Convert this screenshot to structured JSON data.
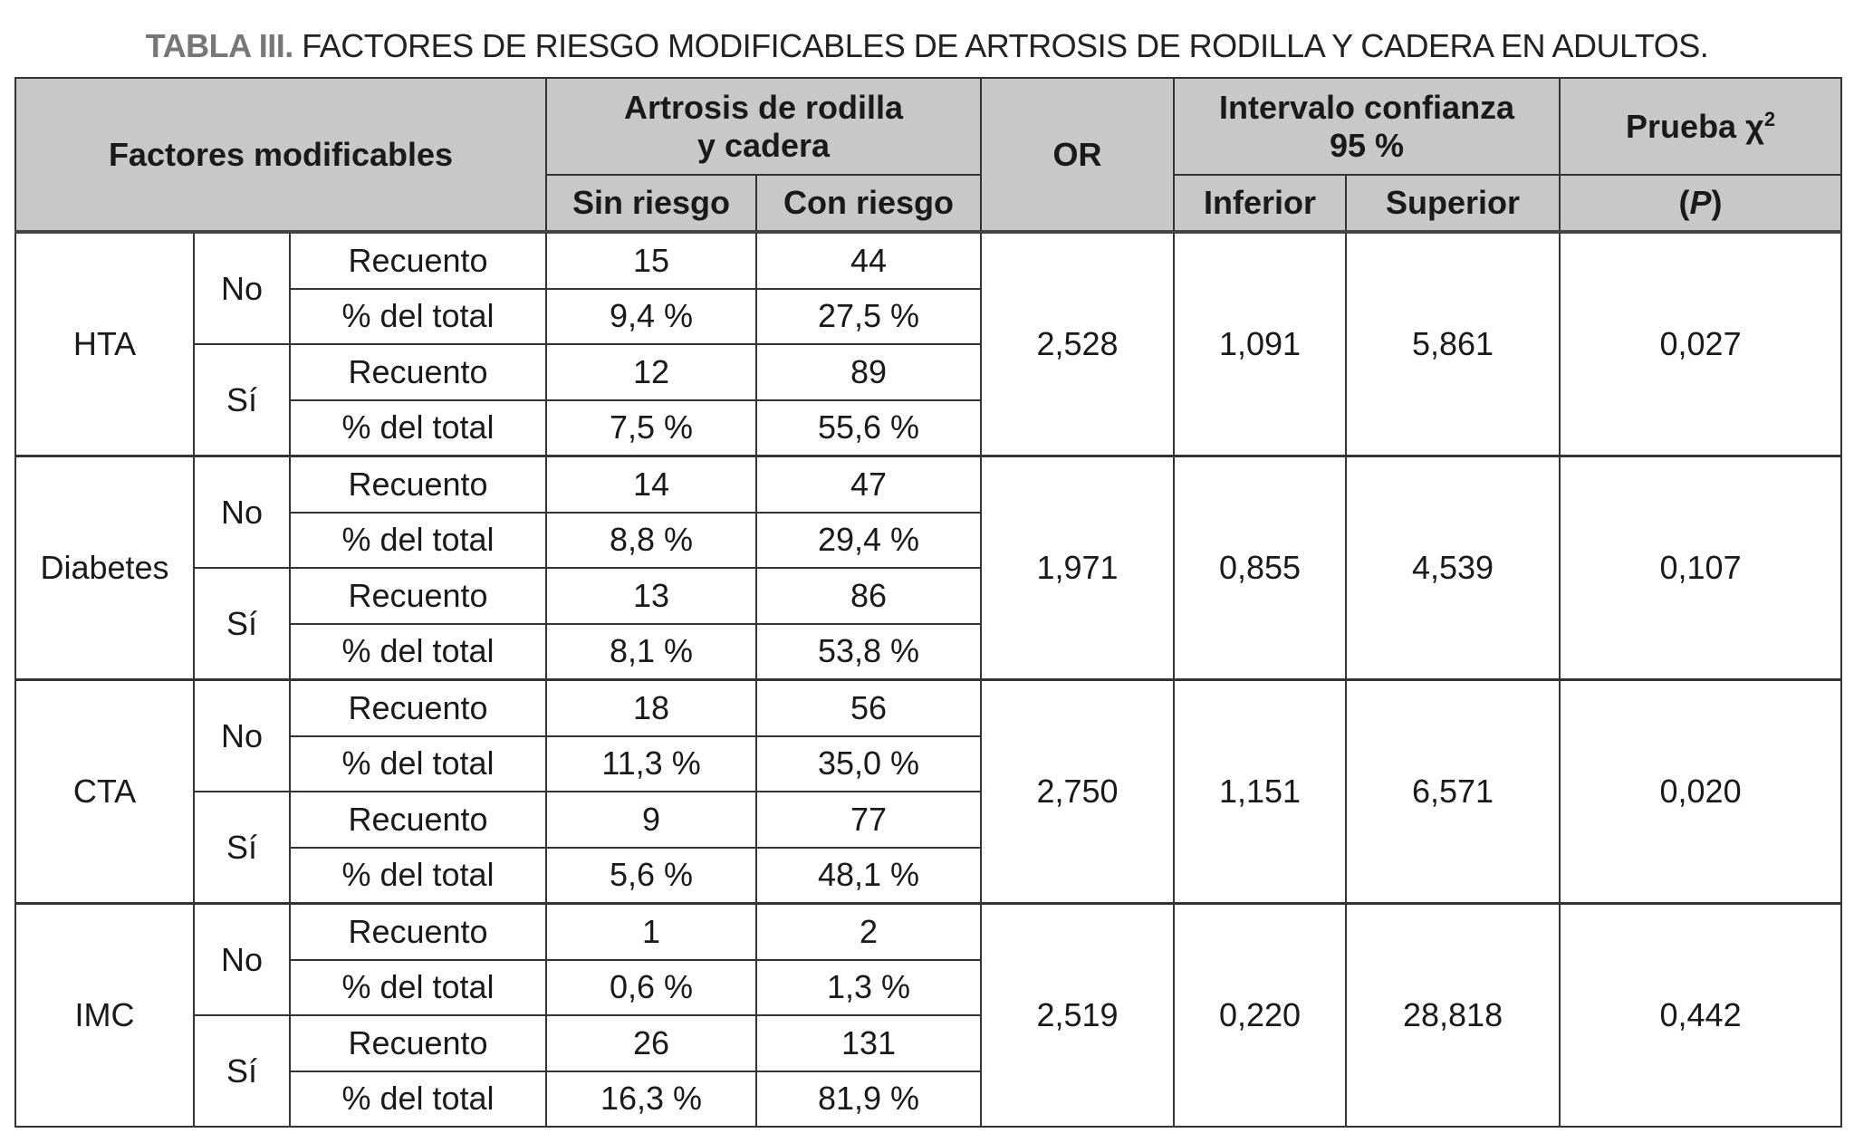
{
  "title": {
    "label": "TABLA III.",
    "text": "FACTORES DE RIESGO MODIFICABLES DE ARTROSIS DE RODILLA Y CADERA EN ADULTOS."
  },
  "header": {
    "factores": "Factores modificables",
    "artrosis_line1": "Artrosis de rodilla",
    "artrosis_line2": "y cadera",
    "sin_riesgo": "Sin riesgo",
    "con_riesgo": "Con riesgo",
    "or": "OR",
    "intervalo_line1": "Intervalo confianza",
    "intervalo_line2": "95 %",
    "inferior": "Inferior",
    "superior": "Superior",
    "prueba": "Prueba χ",
    "prueba_sup": "2",
    "p_open": "(",
    "p": "P",
    "p_close": ")"
  },
  "groups": [
    {
      "factor": "HTA",
      "or": "2,528",
      "inferior": "1,091",
      "superior": "5,861",
      "p": "0,027",
      "rows": [
        {
          "level": "No",
          "recuento": [
            "15",
            "44"
          ],
          "pct": [
            "9,4 %",
            "27,5 %"
          ]
        },
        {
          "level": "Sí",
          "recuento": [
            "12",
            "89"
          ],
          "pct": [
            "7,5 %",
            "55,6 %"
          ]
        }
      ]
    },
    {
      "factor": "Diabetes",
      "or": "1,971",
      "inferior": "0,855",
      "superior": "4,539",
      "p": "0,107",
      "rows": [
        {
          "level": "No",
          "recuento": [
            "14",
            "47"
          ],
          "pct": [
            "8,8 %",
            "29,4 %"
          ]
        },
        {
          "level": "Sí",
          "recuento": [
            "13",
            "86"
          ],
          "pct": [
            "8,1 %",
            "53,8 %"
          ]
        }
      ]
    },
    {
      "factor": "CTA",
      "or": "2,750",
      "inferior": "1,151",
      "superior": "6,571",
      "p": "0,020",
      "rows": [
        {
          "level": "No",
          "recuento": [
            "18",
            "56"
          ],
          "pct": [
            "11,3 %",
            "35,0 %"
          ]
        },
        {
          "level": "Sí",
          "recuento": [
            "9",
            "77"
          ],
          "pct": [
            "5,6 %",
            "48,1 %"
          ]
        }
      ]
    },
    {
      "factor": "IMC",
      "or": "2,519",
      "inferior": "0,220",
      "superior": "28,818",
      "p": "0,442",
      "rows": [
        {
          "level": "No",
          "recuento": [
            "1",
            "2"
          ],
          "pct": [
            "0,6 %",
            "1,3 %"
          ]
        },
        {
          "level": "Sí",
          "recuento": [
            "26",
            "131"
          ],
          "pct": [
            "16,3 %",
            "81,9 %"
          ]
        }
      ]
    }
  ],
  "labels": {
    "recuento": "Recuento",
    "pct": "% del total"
  }
}
